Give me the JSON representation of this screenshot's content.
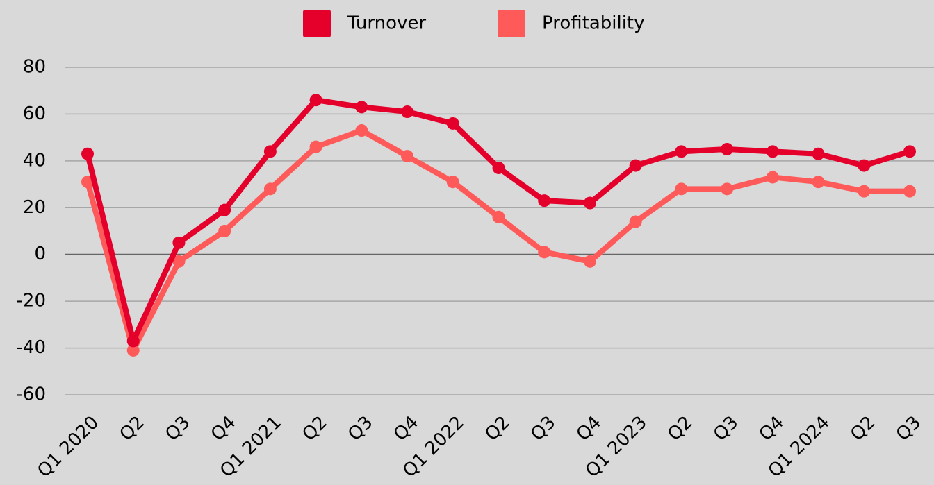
{
  "chart_data": {
    "type": "line",
    "categories": [
      "Q1 2020",
      "Q2",
      "Q3",
      "Q4",
      "Q1 2021",
      "Q2",
      "Q3",
      "Q4",
      "Q1 2022",
      "Q2",
      "Q3",
      "Q4",
      "Q1 2023",
      "Q2",
      "Q3",
      "Q4",
      "Q1 2024",
      "Q2",
      "Q3"
    ],
    "series": [
      {
        "name": "Turnover",
        "color": "#e4002b",
        "values": [
          43,
          -37,
          5,
          19,
          44,
          66,
          63,
          61,
          56,
          37,
          23,
          22,
          38,
          44,
          45,
          44,
          43,
          38,
          44
        ]
      },
      {
        "name": "Profitability",
        "color": "#ff5a5a",
        "values": [
          31,
          -41,
          -3,
          10,
          28,
          46,
          53,
          42,
          31,
          16,
          1,
          -3,
          14,
          28,
          28,
          33,
          31,
          27,
          27
        ]
      }
    ],
    "ylim": [
      -60,
      80
    ],
    "yticks": [
      -60,
      -40,
      -20,
      0,
      20,
      40,
      60,
      80
    ],
    "grid": true,
    "legend": "top"
  }
}
